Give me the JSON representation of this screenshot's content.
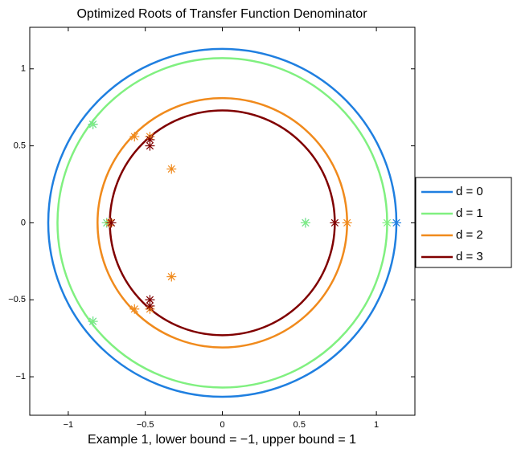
{
  "chart_data": {
    "type": "root-circles",
    "title": "Optimized Roots of Transfer Function Denominator",
    "x_label": "Example 1, lower bound = −1, upper bound = 1",
    "xlim": [
      -1.25,
      1.25
    ],
    "ylim": [
      -1.25,
      1.27
    ],
    "xticks": [
      {
        "value": -1,
        "label": "−1"
      },
      {
        "value": -0.5,
        "label": "−0.5"
      },
      0,
      0.5,
      1
    ],
    "yticks": [
      {
        "value": -1,
        "label": "−1"
      },
      {
        "value": -0.5,
        "label": "−0.5"
      },
      0,
      0.5,
      1
    ],
    "legend": "outside-right",
    "series": [
      {
        "name": "d = 0",
        "color": "#1f7fe0",
        "radius": 1.13,
        "x": [
          1.13,
          0.54,
          -0.84,
          -0.84,
          -0.75
        ],
        "y": [
          0,
          0,
          0.64,
          -0.64,
          0
        ]
      },
      {
        "name": "d = 1",
        "color": "#80f080",
        "radius": 1.07,
        "x": [
          1.07,
          0.54,
          -0.84,
          -0.84,
          -0.75
        ],
        "y": [
          0,
          0,
          0.64,
          -0.64,
          0
        ]
      },
      {
        "name": "d = 2",
        "color": "#f08a1c",
        "radius": 0.81,
        "x": [
          0.81,
          -0.57,
          -0.57,
          -0.33,
          -0.33,
          -0.73,
          -0.47,
          -0.47
        ],
        "y": [
          0,
          0.56,
          -0.56,
          0.35,
          -0.35,
          0,
          0.56,
          -0.56
        ]
      },
      {
        "name": "d = 3",
        "color": "#800000",
        "radius": 0.73,
        "x": [
          0.73,
          -0.47,
          -0.47,
          -0.47,
          -0.47,
          -0.72
        ],
        "y": [
          0,
          0.54,
          -0.54,
          0.5,
          -0.5,
          0
        ]
      }
    ]
  }
}
